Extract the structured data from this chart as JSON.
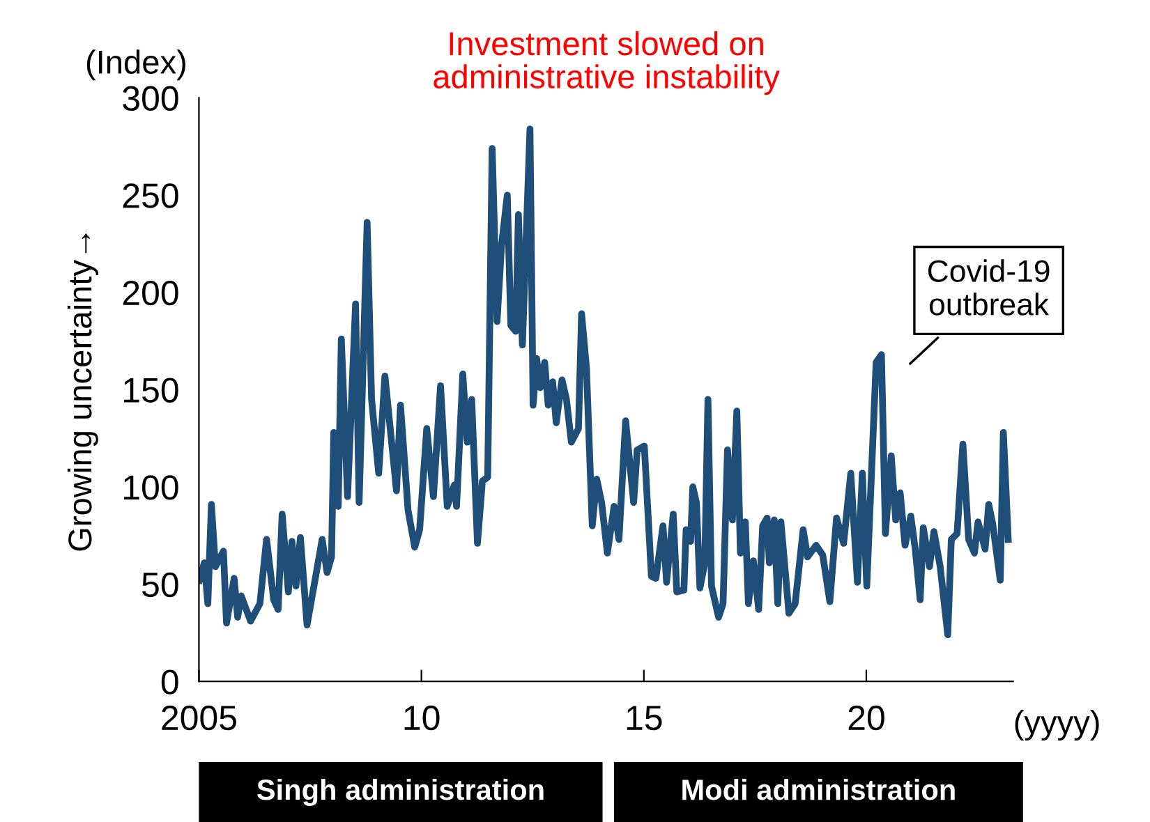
{
  "chart_data": {
    "type": "line",
    "title": "Investment slowed on\nadministrative instability",
    "ylabel": "Growing uncertainty→",
    "xlabel": "(yyyy)",
    "annotations": [
      "(Index)",
      "Singh administration",
      "Modi administration",
      "Covid-19\noutbreak"
    ],
    "series": [
      {
        "color": "#1f4e79",
        "x": [
          2005.01,
          2005.12,
          2005.2,
          2005.28,
          2005.37,
          2005.55,
          2005.62,
          2005.79,
          2005.87,
          2005.95,
          2006.16,
          2006.37,
          2006.52,
          2006.68,
          2006.78,
          2006.87,
          2007.01,
          2007.09,
          2007.18,
          2007.28,
          2007.43,
          2007.77,
          2007.88,
          2007.98,
          2008.03,
          2008.13,
          2008.2,
          2008.34,
          2008.52,
          2008.6,
          2008.78,
          2008.88,
          2009.04,
          2009.18,
          2009.44,
          2009.53,
          2009.7,
          2009.85,
          2009.96,
          2010.12,
          2010.27,
          2010.43,
          2010.58,
          2010.74,
          2010.79,
          2010.93,
          2011.03,
          2011.13,
          2011.26,
          2011.37,
          2011.49,
          2011.59,
          2011.7,
          2011.8,
          2011.93,
          2012.01,
          2012.12,
          2012.18,
          2012.27,
          2012.44,
          2012.51,
          2012.59,
          2012.67,
          2012.77,
          2012.85,
          2012.95,
          2013.03,
          2013.16,
          2013.26,
          2013.37,
          2013.53,
          2013.6,
          2013.71,
          2013.84,
          2013.94,
          2014.05,
          2014.18,
          2014.33,
          2014.44,
          2014.59,
          2014.77,
          2014.85,
          2015.01,
          2015.17,
          2015.27,
          2015.43,
          2015.51,
          2015.66,
          2015.74,
          2015.9,
          2015.95,
          2016.05,
          2016.1,
          2016.18,
          2016.26,
          2016.37,
          2016.44,
          2016.52,
          2016.68,
          2016.78,
          2016.88,
          2016.99,
          2017.09,
          2017.17,
          2017.28,
          2017.35,
          2017.46,
          2017.58,
          2017.67,
          2017.77,
          2017.82,
          2017.93,
          2018.01,
          2018.08,
          2018.26,
          2018.4,
          2018.58,
          2018.68,
          2018.87,
          2019.02,
          2019.18,
          2019.33,
          2019.49,
          2019.65,
          2019.8,
          2019.91,
          2020.01,
          2020.22,
          2020.34,
          2020.43,
          2020.56,
          2020.66,
          2020.76,
          2020.87,
          2021.0,
          2021.1,
          2021.21,
          2021.28,
          2021.42,
          2021.52,
          2021.66,
          2021.83,
          2021.91,
          2022.04,
          2022.17,
          2022.3,
          2022.43,
          2022.51,
          2022.67,
          2022.75,
          2022.84,
          2023.01,
          2023.08,
          2023.19
        ],
        "values": [
          52,
          61,
          40,
          91,
          59,
          67,
          30,
          53,
          33,
          44,
          31,
          40,
          73,
          42,
          37,
          86,
          46,
          72,
          49,
          74,
          29,
          73,
          56,
          64,
          128,
          90,
          176,
          95,
          194,
          92,
          236,
          145,
          107,
          157,
          98,
          142,
          88,
          69,
          78,
          130,
          95,
          152,
          90,
          101,
          90,
          158,
          123,
          145,
          71,
          103,
          105,
          274,
          185,
          224,
          250,
          183,
          180,
          240,
          173,
          284,
          142,
          166,
          151,
          164,
          142,
          154,
          133,
          155,
          145,
          123,
          130,
          189,
          161,
          80,
          104,
          92,
          66,
          90,
          73,
          134,
          92,
          119,
          121,
          54,
          53,
          80,
          51,
          86,
          46,
          47,
          78,
          72,
          100,
          92,
          48,
          61,
          145,
          49,
          33,
          40,
          119,
          83,
          139,
          66,
          82,
          40,
          62,
          37,
          80,
          84,
          61,
          83,
          40,
          82,
          35,
          40,
          78,
          64,
          70,
          65,
          41,
          84,
          71,
          107,
          51,
          107,
          49,
          164,
          168,
          76,
          116,
          83,
          97,
          70,
          85,
          68,
          42,
          79,
          59,
          77,
          59,
          24,
          73,
          76,
          122,
          73,
          66,
          82,
          68,
          91,
          81,
          52,
          128,
          73
        ]
      }
    ],
    "xlim": [
      2005,
      2023.3
    ],
    "xticks": [
      {
        "value": 2005,
        "label": "2005"
      },
      {
        "value": 2010,
        "label": "10"
      },
      {
        "value": 2015,
        "label": "15"
      },
      {
        "value": 2020,
        "label": "20"
      }
    ],
    "ylim": [
      0,
      300
    ],
    "yticks": [
      0,
      50,
      100,
      150,
      200,
      250,
      300
    ],
    "grid": false,
    "legend": false,
    "marker": "none",
    "line_style": "solid"
  }
}
